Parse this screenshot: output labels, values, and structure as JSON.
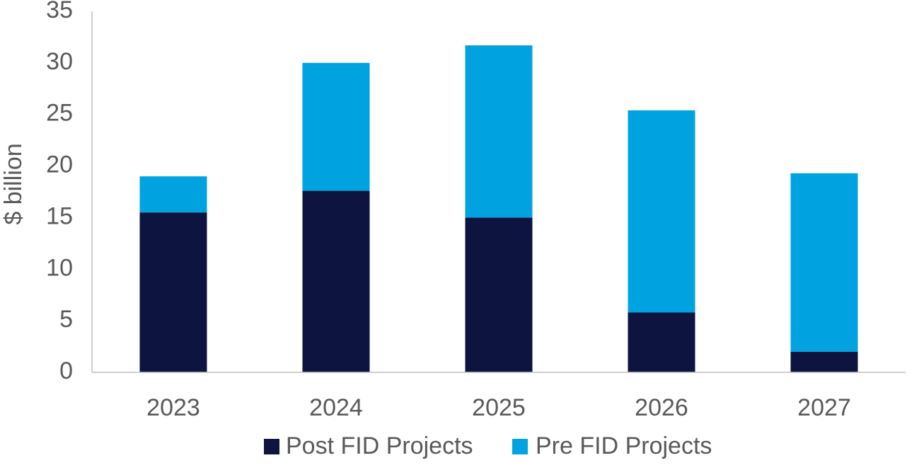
{
  "chart_data": {
    "type": "bar",
    "stacked": true,
    "title": "",
    "xlabel": "",
    "ylabel": "$ billion",
    "categories": [
      "2023",
      "2024",
      "2025",
      "2026",
      "2027"
    ],
    "series": [
      {
        "name": "Post FID Projects",
        "color": "#0e1440",
        "values": [
          15.5,
          17.6,
          15.0,
          5.8,
          2.0
        ]
      },
      {
        "name": "Pre FID Projects",
        "color": "#00a3e0",
        "values": [
          3.5,
          12.4,
          16.7,
          19.6,
          17.3
        ]
      }
    ],
    "ylim": [
      0,
      35
    ],
    "yticks": [
      0,
      5,
      10,
      15,
      20,
      25,
      30,
      35
    ],
    "grid": false,
    "legend_position": "bottom"
  }
}
